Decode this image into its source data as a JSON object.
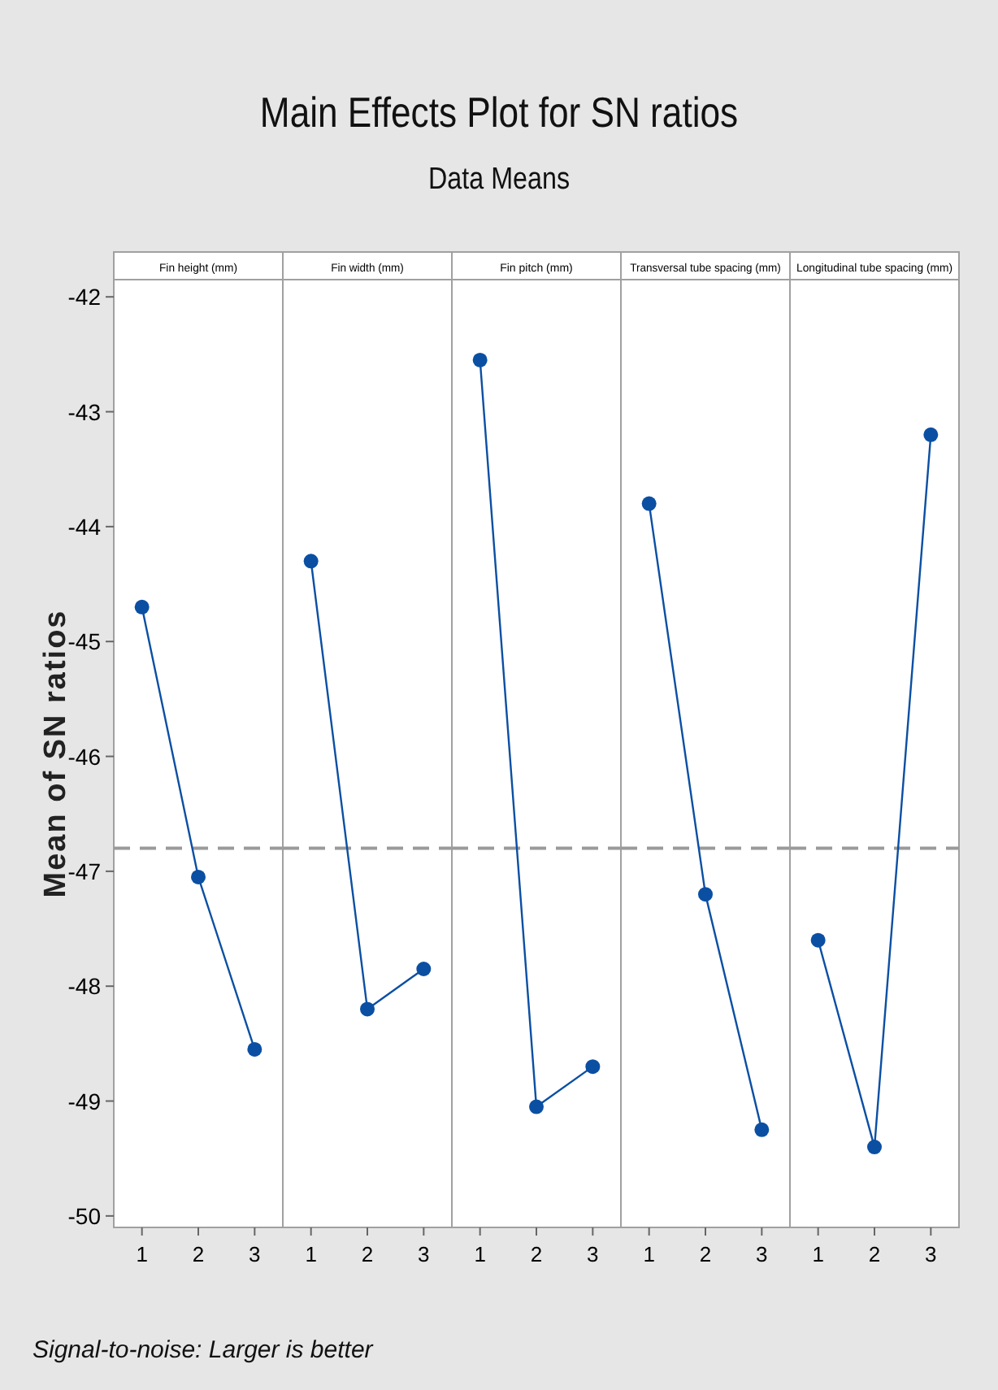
{
  "chart_data": [
    {
      "type": "other",
      "title": "Main Effects Plot for SN ratios",
      "subtitle": "Data Means",
      "annotations": [
        "Signal-to-noise: Larger is better"
      ]
    },
    {
      "type": "line",
      "title": "Fin height (mm)",
      "ylabel": "Mean of SN ratios",
      "categories": [
        "1",
        "2",
        "3"
      ],
      "values": [
        -44.7,
        -47.05,
        -48.55
      ],
      "color": "#0b4fa3",
      "marker": "circle",
      "ylim": [
        -50.1,
        -41.85
      ],
      "yticks": [
        -42,
        -43,
        -44,
        -45,
        -46,
        -47,
        -48,
        -49,
        -50
      ],
      "ref_lines": [
        {
          "axis": "y",
          "value": -46.8,
          "color": "#9a9a9a",
          "line_style": "dashed"
        }
      ]
    },
    {
      "type": "line",
      "title": "Fin width (mm)",
      "categories": [
        "1",
        "2",
        "3"
      ],
      "values": [
        -44.3,
        -48.2,
        -47.85
      ],
      "color": "#0b4fa3",
      "marker": "circle",
      "ylim": [
        -50.1,
        -41.85
      ],
      "tick_labels": "x",
      "ref_lines": [
        {
          "axis": "y",
          "value": -46.8,
          "color": "#9a9a9a",
          "line_style": "dashed"
        }
      ]
    },
    {
      "type": "line",
      "title": "Fin pitch (mm)",
      "categories": [
        "1",
        "2",
        "3"
      ],
      "values": [
        -42.55,
        -49.05,
        -48.7
      ],
      "color": "#0b4fa3",
      "marker": "circle",
      "ylim": [
        -50.1,
        -41.85
      ],
      "tick_labels": "x",
      "ref_lines": [
        {
          "axis": "y",
          "value": -46.8,
          "color": "#9a9a9a",
          "line_style": "dashed"
        }
      ]
    },
    {
      "type": "line",
      "title": "Transversal tube spacing (mm)",
      "categories": [
        "1",
        "2",
        "3"
      ],
      "values": [
        -43.8,
        -47.2,
        -49.25
      ],
      "color": "#0b4fa3",
      "marker": "circle",
      "ylim": [
        -50.1,
        -41.85
      ],
      "tick_labels": "x",
      "ref_lines": [
        {
          "axis": "y",
          "value": -46.8,
          "color": "#9a9a9a",
          "line_style": "dashed"
        }
      ]
    },
    {
      "type": "line",
      "title": "Longitudinal tube spacing (mm)",
      "categories": [
        "1",
        "2",
        "3"
      ],
      "values": [
        -47.6,
        -49.4,
        -43.2
      ],
      "color": "#0b4fa3",
      "marker": "circle",
      "ylim": [
        -50.1,
        -41.85
      ],
      "tick_labels": "x",
      "ref_lines": [
        {
          "axis": "y",
          "value": -46.8,
          "color": "#9a9a9a",
          "line_style": "dashed"
        }
      ]
    }
  ]
}
